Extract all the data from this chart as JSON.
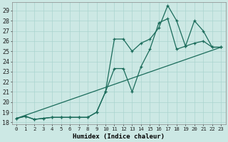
{
  "xlabel": "Humidex (Indice chaleur)",
  "background_color": "#cce8e4",
  "grid_color": "#aad4cf",
  "line_color": "#1a6b5a",
  "xlim": [
    -0.5,
    23.5
  ],
  "ylim": [
    17.8,
    29.8
  ],
  "xtick_labels": [
    "0",
    "1",
    "2",
    "3",
    "4",
    "5",
    "6",
    "7",
    "8",
    "9",
    "10",
    "11",
    "12",
    "13",
    "14",
    "15",
    "16",
    "17",
    "18",
    "19",
    "20",
    "21",
    "22",
    "23"
  ],
  "ytick_labels": [
    "18",
    "19",
    "20",
    "21",
    "22",
    "23",
    "24",
    "25",
    "26",
    "27",
    "28",
    "29"
  ],
  "ytick_vals": [
    18,
    19,
    20,
    21,
    22,
    23,
    24,
    25,
    26,
    27,
    28,
    29
  ],
  "series1_x": [
    0,
    1,
    2,
    3,
    4,
    5,
    6,
    7,
    8,
    9,
    10,
    11,
    12,
    13,
    14,
    15,
    16,
    17,
    18,
    19,
    20,
    21,
    22,
    23
  ],
  "series1_y": [
    18.4,
    18.6,
    18.3,
    18.4,
    18.5,
    18.5,
    18.5,
    18.5,
    18.5,
    19.0,
    21.0,
    26.2,
    26.2,
    25.0,
    25.8,
    26.2,
    27.3,
    29.5,
    28.0,
    25.5,
    28.0,
    27.0,
    25.4,
    25.4
  ],
  "series2_x": [
    0,
    1,
    2,
    3,
    4,
    5,
    6,
    7,
    8,
    9,
    10,
    11,
    12,
    13,
    14,
    15,
    16,
    17,
    18,
    19,
    20,
    21,
    22,
    23
  ],
  "series2_y": [
    18.4,
    18.6,
    18.3,
    18.4,
    18.5,
    18.5,
    18.5,
    18.5,
    18.5,
    19.0,
    21.0,
    23.3,
    23.3,
    21.0,
    23.5,
    25.2,
    27.8,
    28.2,
    25.2,
    25.5,
    25.8,
    26.0,
    25.4,
    25.4
  ],
  "series3_x": [
    0,
    23
  ],
  "series3_y": [
    18.4,
    25.4
  ]
}
